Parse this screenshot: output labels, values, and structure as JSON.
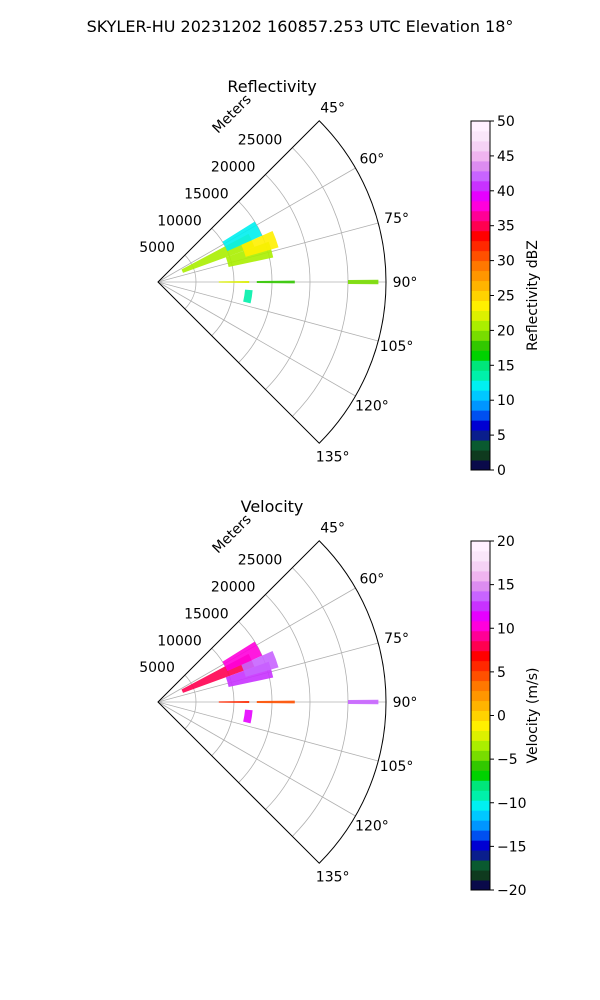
{
  "figure": {
    "title": "SKYLER-HU  20231202  160857.253 UTC Elevation 18°"
  },
  "chart_data": [
    {
      "type": "polar-sector",
      "title": "Reflectivity",
      "radial_label": "Meters",
      "radial_ticks": [
        5000,
        10000,
        15000,
        20000,
        25000
      ],
      "radial_tick_labels": [
        "5000",
        "10000",
        "15000",
        "20000",
        "25000"
      ],
      "azimuth_range_deg": [
        45,
        135
      ],
      "azimuth_ticks": [
        45,
        60,
        75,
        90,
        105,
        120,
        135
      ],
      "azimuth_tick_labels": [
        "45°",
        "60°",
        "75°",
        "90°",
        "105°",
        "120°",
        "135°"
      ],
      "max_range_m": 30000,
      "grid": true,
      "colorbar": {
        "label": "Reflectivity dBZ",
        "range": [
          0,
          50
        ],
        "ticks": [
          0,
          5,
          10,
          15,
          20,
          25,
          30,
          35,
          40,
          45,
          50
        ],
        "tick_labels": [
          "0",
          "5",
          "10",
          "15",
          "20",
          "25",
          "30",
          "35",
          "40",
          "45",
          "50"
        ],
        "colors": [
          "#0a0a4a",
          "#0f3a1e",
          "#0a5a30",
          "#0a1e8c",
          "#0000d2",
          "#0050f0",
          "#0096ff",
          "#00c8ff",
          "#00f0f0",
          "#00f0aa",
          "#00e67a",
          "#00d200",
          "#32c800",
          "#78dc00",
          "#aaee00",
          "#dcf000",
          "#fff000",
          "#ffd200",
          "#ffb400",
          "#ff9600",
          "#ff7800",
          "#ff5000",
          "#ff2800",
          "#ff0000",
          "#ff0050",
          "#ff0096",
          "#ff00dc",
          "#e600ff",
          "#c832ff",
          "#c864ff",
          "#dc8cf0",
          "#f0b4f0",
          "#f5d2f5",
          "#fae6fa",
          "#fff0ff"
        ]
      },
      "echoes": [
        {
          "az": 66,
          "r": [
            3500,
            13500
          ],
          "value": 20
        },
        {
          "az": 62,
          "r": [
            10000,
            15000
          ],
          "value": 12
        },
        {
          "az": 74,
          "r": [
            9500,
            15500
          ],
          "value": 21
        },
        {
          "az": 70,
          "r": [
            12000,
            16500
          ],
          "value": 24
        },
        {
          "az": 90,
          "r": [
            8000,
            12000
          ],
          "value": 22
        },
        {
          "az": 90,
          "r": [
            13000,
            18000
          ],
          "value": 18
        },
        {
          "az": 90,
          "r": [
            25000,
            29000
          ],
          "value": 19
        },
        {
          "az": 99,
          "r": [
            11500,
            12500
          ],
          "value": 14
        }
      ]
    },
    {
      "type": "polar-sector",
      "title": "Velocity",
      "radial_label": "Meters",
      "radial_ticks": [
        5000,
        10000,
        15000,
        20000,
        25000
      ],
      "radial_tick_labels": [
        "5000",
        "10000",
        "15000",
        "20000",
        "25000"
      ],
      "azimuth_range_deg": [
        45,
        135
      ],
      "azimuth_ticks": [
        45,
        60,
        75,
        90,
        105,
        120,
        135
      ],
      "azimuth_tick_labels": [
        "45°",
        "60°",
        "75°",
        "90°",
        "105°",
        "120°",
        "135°"
      ],
      "max_range_m": 30000,
      "grid": true,
      "colorbar": {
        "label": "Velocity (m/s)",
        "range": [
          -20,
          20
        ],
        "ticks": [
          -20,
          -15,
          -10,
          -5,
          0,
          5,
          10,
          15,
          20
        ],
        "tick_labels": [
          "−20",
          "−15",
          "−10",
          "−5",
          "0",
          "5",
          "10",
          "15",
          "20"
        ],
        "colors": [
          "#0a0a4a",
          "#0f3a1e",
          "#0a5a30",
          "#0a1e8c",
          "#0000d2",
          "#0050f0",
          "#0096ff",
          "#00c8ff",
          "#00f0f0",
          "#00f0aa",
          "#00e67a",
          "#00d200",
          "#32c800",
          "#78dc00",
          "#aaee00",
          "#dcf000",
          "#fff000",
          "#ffd200",
          "#ffb400",
          "#ff9600",
          "#ff7800",
          "#ff5000",
          "#ff2800",
          "#ff0000",
          "#ff0050",
          "#ff0096",
          "#ff00dc",
          "#e600ff",
          "#c832ff",
          "#c864ff",
          "#dc8cf0",
          "#f0b4f0",
          "#f5d2f5",
          "#fae6fa",
          "#fff0ff"
        ]
      },
      "echoes": [
        {
          "az": 66,
          "r": [
            3500,
            13500
          ],
          "value": 8
        },
        {
          "az": 62,
          "r": [
            10000,
            15000
          ],
          "value": 10
        },
        {
          "az": 74,
          "r": [
            9500,
            15500
          ],
          "value": 12
        },
        {
          "az": 70,
          "r": [
            12000,
            16500
          ],
          "value": 14
        },
        {
          "az": 90,
          "r": [
            8000,
            12000
          ],
          "value": 6
        },
        {
          "az": 90,
          "r": [
            13000,
            18000
          ],
          "value": 4
        },
        {
          "az": 90,
          "r": [
            25000,
            29000
          ],
          "value": 14
        },
        {
          "az": 99,
          "r": [
            11500,
            12500
          ],
          "value": 11
        }
      ]
    }
  ]
}
